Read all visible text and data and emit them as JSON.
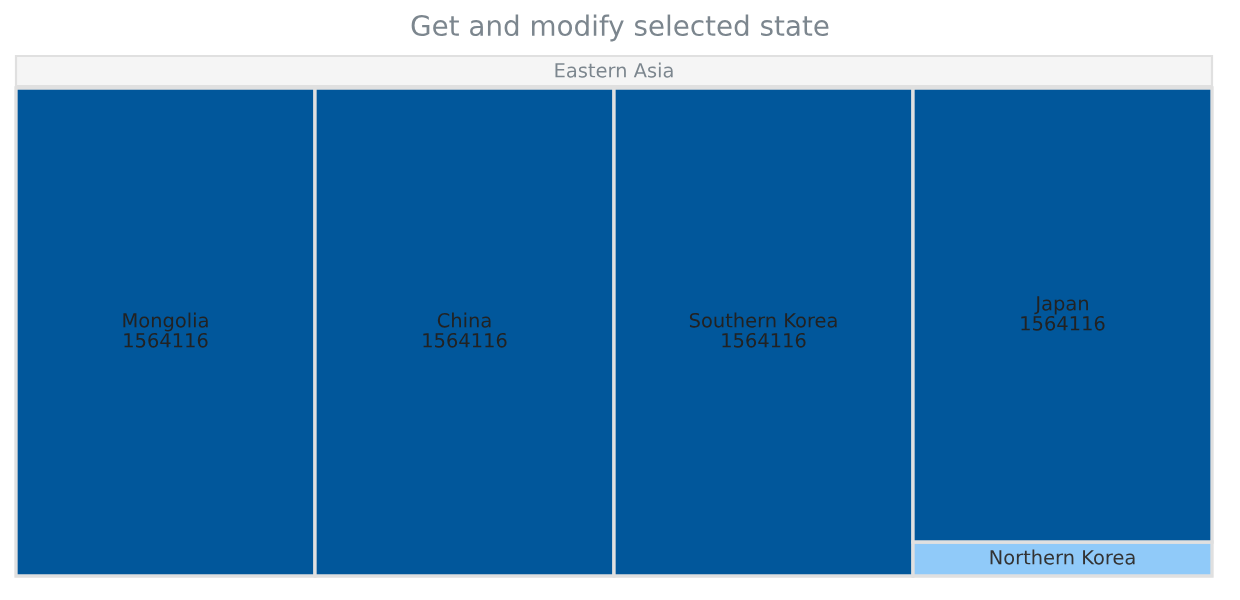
{
  "chart_data": {
    "type": "other",
    "title": "Get and modify selected state",
    "annotations": [
      "Eastern Asia"
    ],
    "categories": [
      "Mongolia",
      "China",
      "Southern Korea",
      "Japan",
      "Northern Korea"
    ],
    "values": [
      1564116,
      1564116,
      1564116,
      1564116,
      null
    ],
    "colors": [
      "#01579b",
      "#01579b",
      "#01579b",
      "#01579b",
      "#90caf9"
    ],
    "data_labels": true
  }
}
